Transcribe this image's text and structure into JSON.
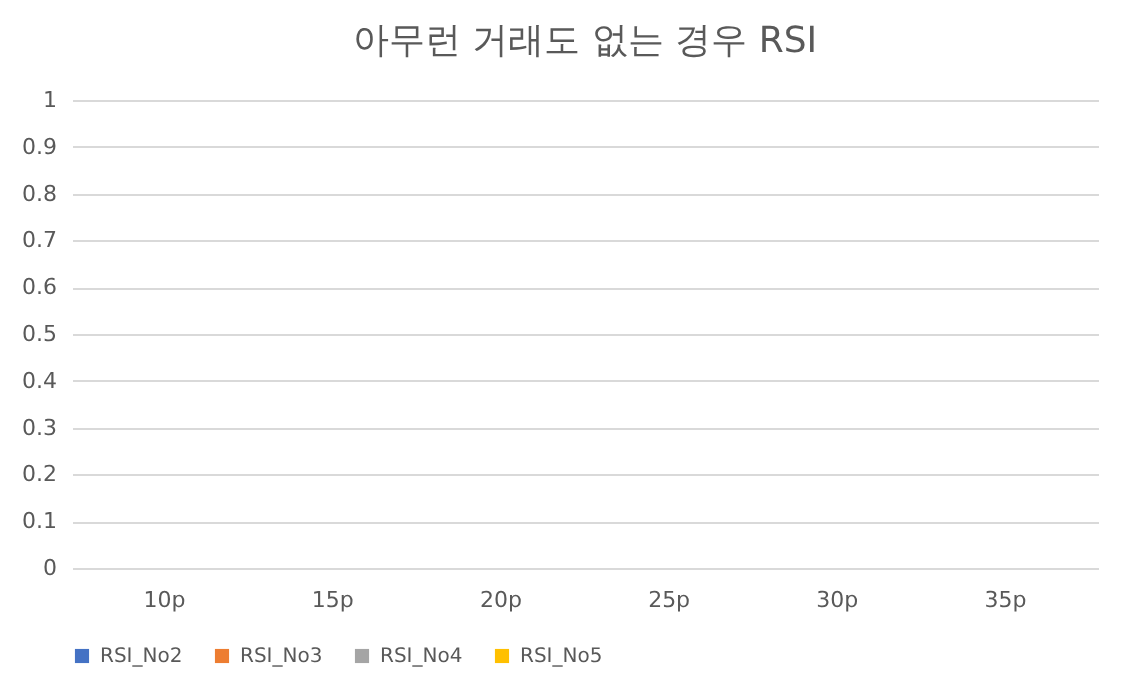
{
  "chart_data": {
    "type": "bar",
    "title": "아무런 거래도 없는 경우  RSI",
    "categories": [
      "10p",
      "15p",
      "20p",
      "25p",
      "30p",
      "35p"
    ],
    "series": [
      {
        "name": "RSI_No2",
        "color": "#4472c4",
        "values": [
          null,
          null,
          null,
          null,
          null,
          null
        ]
      },
      {
        "name": "RSI_No3",
        "color": "#ed7d31",
        "values": [
          null,
          null,
          null,
          null,
          null,
          null
        ]
      },
      {
        "name": "RSI_No4",
        "color": "#a5a5a5",
        "values": [
          null,
          null,
          null,
          null,
          null,
          null
        ]
      },
      {
        "name": "RSI_No5",
        "color": "#ffc000",
        "values": [
          null,
          null,
          null,
          null,
          null,
          null
        ]
      }
    ],
    "ylim": [
      0,
      1
    ],
    "yticks": [
      0,
      0.1,
      0.2,
      0.3,
      0.4,
      0.5,
      0.6,
      0.7,
      0.8,
      0.9,
      1
    ],
    "grid": "y",
    "legend": "bottom"
  }
}
